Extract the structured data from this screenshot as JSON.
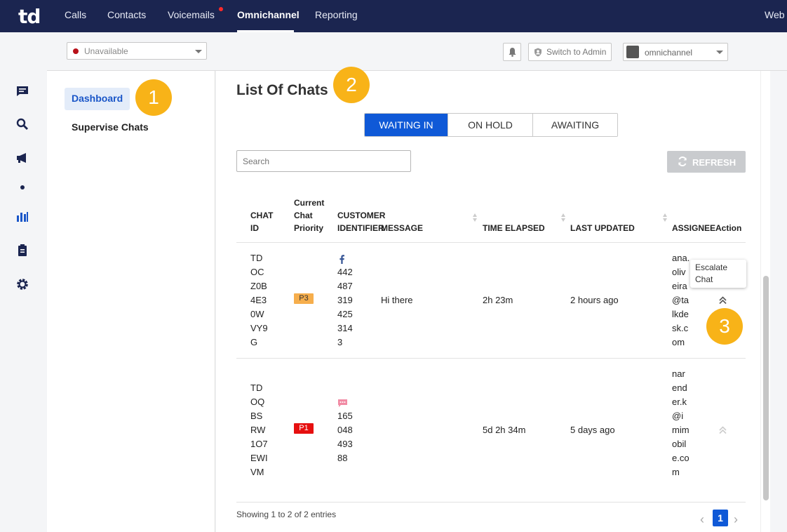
{
  "topnav": {
    "logo": "td",
    "items": [
      "Calls",
      "Contacts",
      "Voicemails",
      "Omnichannel",
      "Reporting"
    ],
    "active": "Omnichannel",
    "right_label": "Web"
  },
  "rail": {
    "icons": [
      "chat-icon",
      "search-icon",
      "megaphone-icon",
      "dot-icon",
      "reports-icon",
      "clipboard-icon",
      "gear-icon"
    ]
  },
  "toolbar": {
    "status": "Unavailable",
    "status_color": "#b8111a",
    "switch_admin": "Switch to Admin",
    "user": "omnichannel"
  },
  "sidebar": {
    "items": [
      "Dashboard",
      "Supervise Chats"
    ],
    "active": "Dashboard"
  },
  "callouts": [
    "1",
    "2",
    "3"
  ],
  "main": {
    "title": "List Of Chats",
    "tabs": [
      "WAITING IN",
      "ON HOLD",
      "AWAITING"
    ],
    "active_tab": "WAITING IN",
    "search_placeholder": "Search",
    "refresh": "REFRESH"
  },
  "table": {
    "headers": {
      "chat_id": "CHAT ID",
      "priority": "Current Chat Priority",
      "customer": "CUSTOMER IDENTIFIER",
      "message": "MESSAGE",
      "elapsed": "TIME ELAPSED",
      "updated": "LAST UPDATED",
      "assignee": "ASSIGNEE",
      "action": "Action"
    },
    "rows": [
      {
        "chat_id": "TDOCZ0B4E30WVY9G",
        "priority": "P3",
        "channel_icon": "facebook-icon",
        "customer": "4424873194253143",
        "message": "Hi there",
        "elapsed": "2h 23m",
        "updated": "2 hours ago",
        "assignee": "ana.oliveira@talkdesk.com"
      },
      {
        "chat_id": "TDOQBSRW1O7EWIVM",
        "priority": "P1",
        "channel_icon": "sms-icon",
        "customer": "16504849388",
        "message": "",
        "elapsed": "5d 2h 34m",
        "updated": "5 days ago",
        "assignee": "narender.k@imimobile.com"
      }
    ],
    "tooltip": "Escalate Chat"
  },
  "footer": {
    "showing": "Showing 1 to 2 of 2 entries",
    "page": "1"
  }
}
